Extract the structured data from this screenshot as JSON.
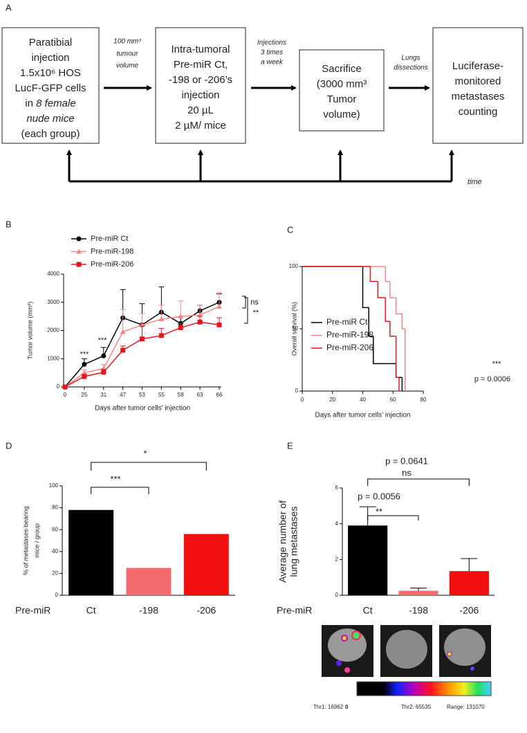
{
  "panel_labels": [
    "A",
    "B",
    "C",
    "D",
    "E"
  ],
  "diagram": {
    "boxes": [
      {
        "lines": [
          "Paratibial",
          "injection",
          "1.5x10⁶ HOS",
          "LucF-GFP cells",
          "in",
          "8 female",
          "nude mice",
          "(each group)"
        ]
      },
      {
        "lines": [
          "Intra-tumoral",
          "Pre-miR  Ct,",
          "-198 or -206’s",
          "injection",
          "20 µL",
          "2 µM/ mice"
        ]
      },
      {
        "lines": [
          "Sacrifice",
          "(3000 mm³",
          "Tumor",
          "volume)"
        ]
      },
      {
        "lines": [
          "Luciferase-",
          "monitored",
          "metastases",
          "counting"
        ]
      }
    ],
    "arrow_labels": [
      [
        "100 mm³",
        "tumour",
        "volume"
      ],
      [
        "Injections",
        "3 times",
        "a week"
      ],
      [
        "Lungs",
        "dissections"
      ]
    ],
    "timeline_label": "time"
  },
  "chart_data": [
    {
      "type": "line",
      "x_label": "Days after tumor cells' injection",
      "y_label": "Tumor volume (mm³)",
      "categories": [
        "0",
        "25",
        "31",
        "47",
        "53",
        "55",
        "58",
        "63",
        "66"
      ],
      "ylim": [
        0,
        4000
      ],
      "yticks": [
        0,
        1000,
        2000,
        3000,
        4000
      ],
      "series": [
        {
          "name": "Pre-miR Ct",
          "color": "#000000",
          "marker": "circle",
          "values": [
            0,
            800,
            1100,
            2450,
            2200,
            2650,
            2250,
            2700,
            3000
          ],
          "errors": [
            0,
            200,
            300,
            1000,
            750,
            900,
            250,
            200,
            300
          ]
        },
        {
          "name": "Pre-miR-198",
          "color": "#f4868a",
          "marker": "triangle",
          "values": [
            0,
            500,
            650,
            1950,
            2200,
            2400,
            2500,
            2550,
            2850
          ],
          "errors": [
            0,
            100,
            150,
            800,
            400,
            500,
            550,
            350,
            500
          ]
        },
        {
          "name": "Pre-miR-206",
          "color": "#e8141c",
          "marker": "square",
          "values": [
            0,
            370,
            520,
            1300,
            1700,
            1820,
            2100,
            2300,
            2200
          ],
          "errors": [
            0,
            80,
            100,
            150,
            450,
            250,
            150,
            200,
            250
          ]
        }
      ],
      "annotations": [
        "***",
        "***",
        "ns",
        "**"
      ]
    },
    {
      "type": "step",
      "x_label": "Days after tumor cells’ injection",
      "y_label": "Overall survival (%)",
      "xlim": [
        0,
        80
      ],
      "xticks": [
        0,
        20,
        40,
        60,
        80
      ],
      "ylim": [
        0,
        100
      ],
      "yticks": [
        0,
        50,
        100
      ],
      "series": [
        {
          "name": "Pre-miR Ct",
          "color": "#000000",
          "x": [
            0,
            40,
            44,
            47,
            62,
            66
          ],
          "values": [
            100,
            67,
            44,
            22,
            11,
            0
          ]
        },
        {
          "name": "Pre-miR-198",
          "color": "#f4868a",
          "x": [
            0,
            55,
            58,
            62,
            66,
            68
          ],
          "values": [
            100,
            88,
            75,
            62,
            50,
            0
          ]
        },
        {
          "name": "Pre-miR-206",
          "color": "#e8141c",
          "x": [
            0,
            45,
            50,
            55,
            58,
            62,
            64
          ],
          "values": [
            100,
            88,
            75,
            56,
            44,
            11,
            0
          ]
        }
      ],
      "annotations": [
        "***",
        "p = 0.0006"
      ]
    },
    {
      "type": "bar",
      "y_label": [
        "% of metastases-bearing",
        "mice / group"
      ],
      "group_label": "Pre-miR",
      "categories": [
        "Ct",
        "-198",
        "-206"
      ],
      "values": [
        78,
        25,
        56
      ],
      "colors": [
        "#000000",
        "#f26b6f",
        "#f01010"
      ],
      "ylim": [
        0,
        100
      ],
      "yticks": [
        0,
        20,
        40,
        60,
        80,
        100
      ],
      "annotations": [
        "***",
        "*"
      ]
    },
    {
      "type": "bar",
      "y_label": [
        "Average number of",
        "lung metastases"
      ],
      "group_label": "Pre-miR",
      "categories": [
        "Ct",
        "-198",
        "-206"
      ],
      "values": [
        3.9,
        0.25,
        1.35
      ],
      "errors": [
        1.05,
        0.15,
        0.7
      ],
      "colors": [
        "#000000",
        "#f26b6f",
        "#f01010"
      ],
      "ylim": [
        0,
        6
      ],
      "yticks": [
        0,
        2,
        4,
        6
      ],
      "annotations": [
        "p = 0.0641",
        "ns",
        "p = 0.0056",
        "**"
      ],
      "colorbar_labels": [
        "Thr1: 16962",
        "0",
        "Thr2: 65535",
        "Range: 131070"
      ]
    }
  ]
}
